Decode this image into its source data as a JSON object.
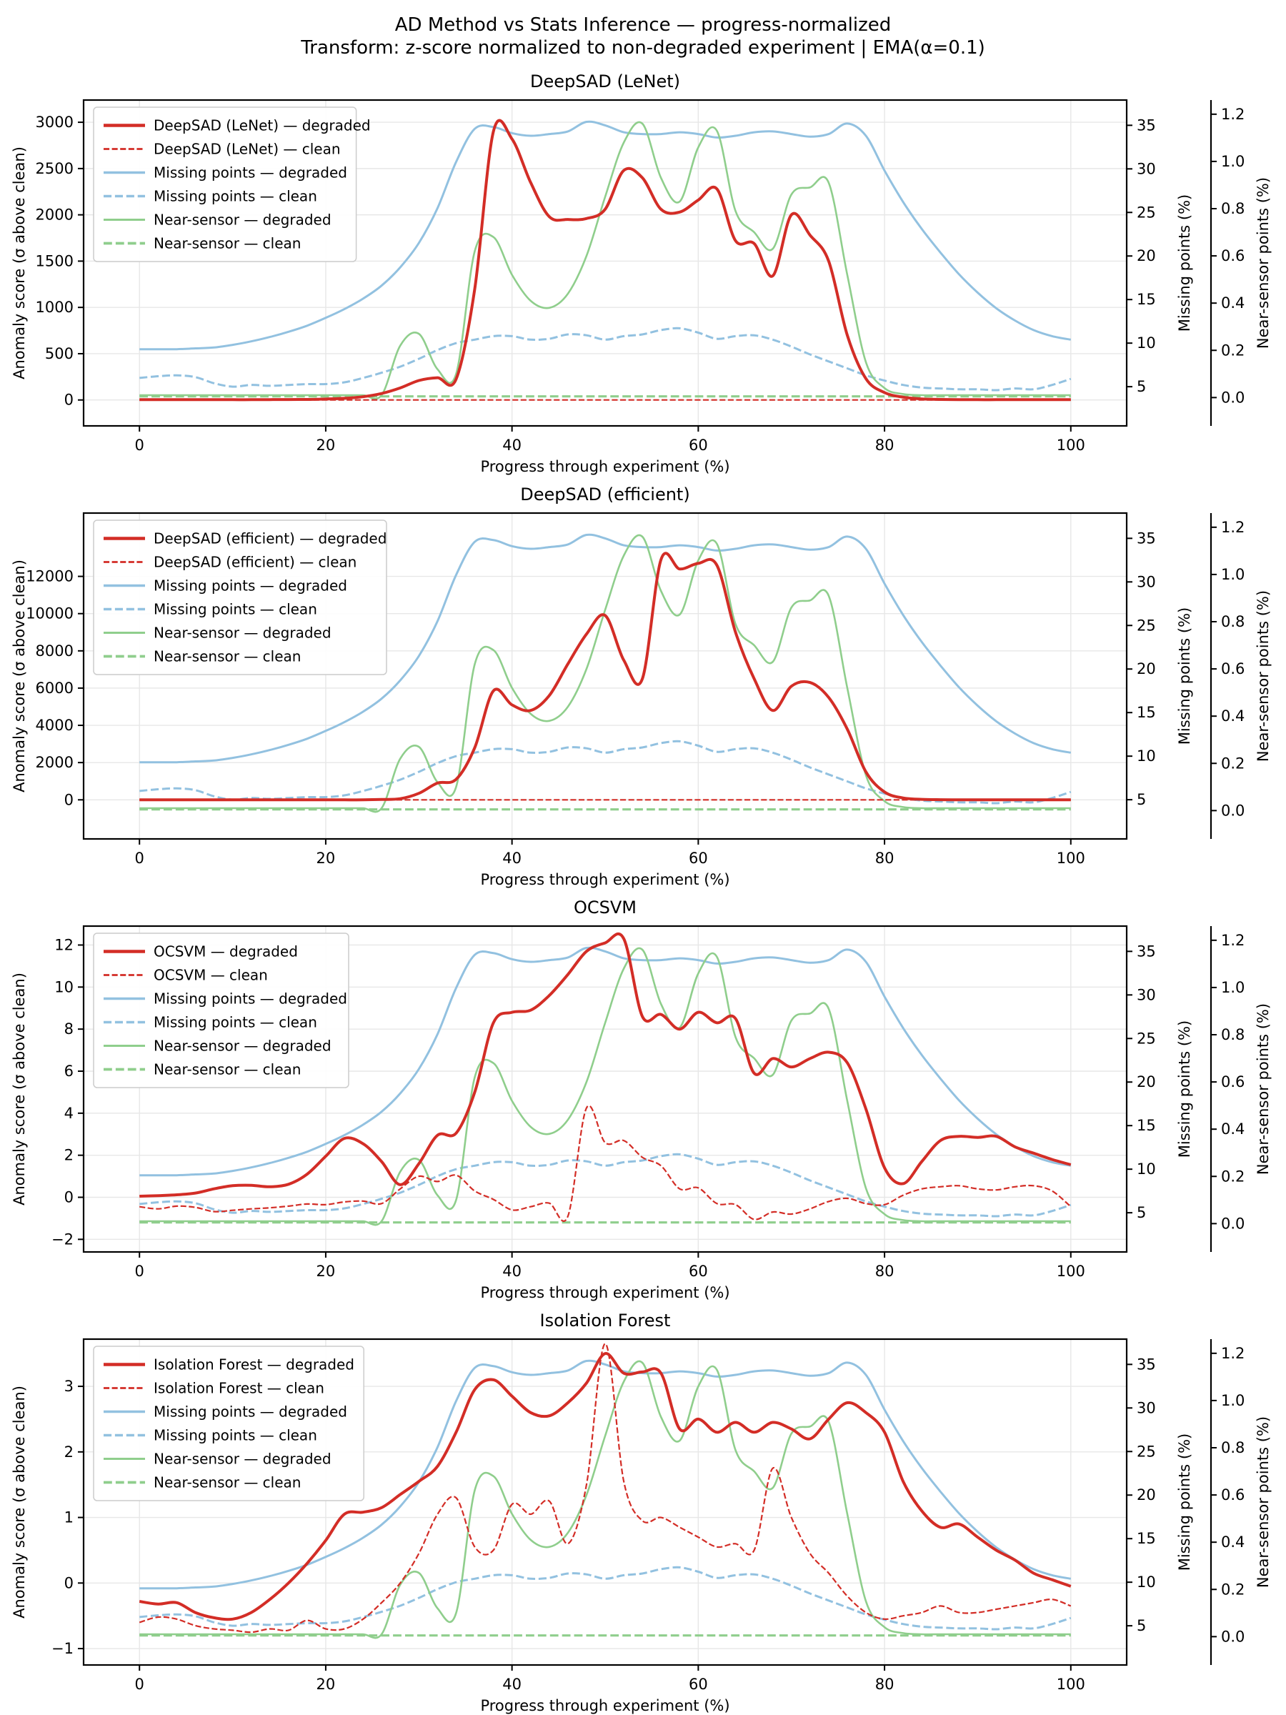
{
  "figure": {
    "title": "AD Method vs Stats Inference — progress-normalized",
    "subtitle": "Transform: z-score normalized to non-degraded experiment | EMA(α=0.1)",
    "xlabel": "Progress through experiment (%)",
    "ylabel_left": "Anomaly score (σ above clean)",
    "ylabel_right1": "Missing points (%)",
    "ylabel_right2": "Near-sensor points (%)"
  },
  "colors": {
    "ad": "#d32d26",
    "missing": "#92c1e0",
    "near": "#8fce8c",
    "grid": "#e7e7e7",
    "spine": "#000000"
  },
  "chart_data": {
    "type": "line",
    "x": [
      0,
      2,
      4,
      6,
      8,
      10,
      12,
      14,
      16,
      18,
      20,
      22,
      24,
      26,
      28,
      30,
      32,
      34,
      36,
      38,
      40,
      42,
      44,
      46,
      48,
      50,
      52,
      54,
      56,
      58,
      60,
      62,
      64,
      66,
      68,
      70,
      72,
      74,
      76,
      78,
      80,
      82,
      84,
      86,
      88,
      90,
      92,
      94,
      96,
      98,
      100
    ],
    "x_ticks": [
      0,
      20,
      40,
      60,
      80,
      100
    ],
    "x_tick_labels": [
      "0",
      "20",
      "40",
      "60",
      "80",
      "100"
    ],
    "x_lim": [
      -6,
      106
    ],
    "grid": true,
    "legend_position": "upper left",
    "right_axis_missing": {
      "label": "Missing points (%)",
      "ticks": [
        5,
        10,
        15,
        20,
        25,
        30,
        35
      ],
      "tick_labels": [
        "5",
        "10",
        "15",
        "20",
        "25",
        "30",
        "35"
      ],
      "lim": [
        0.5,
        37.9
      ]
    },
    "right_axis_near": {
      "label": "Near-sensor points (%)",
      "ticks": [
        0.0,
        0.2,
        0.4,
        0.6,
        0.8,
        1.0,
        1.2
      ],
      "tick_labels": [
        "0.0",
        "0.2",
        "0.4",
        "0.6",
        "0.8",
        "1.0",
        "1.2"
      ],
      "lim": [
        -0.12,
        1.26
      ]
    },
    "shared_series": {
      "missing_degraded": [
        9.3,
        9.3,
        9.3,
        9.4,
        9.5,
        9.8,
        10.2,
        10.7,
        11.3,
        12.0,
        12.9,
        13.9,
        15.1,
        16.6,
        18.7,
        21.5,
        25.5,
        30.8,
        34.6,
        34.8,
        34.1,
        33.8,
        34.0,
        34.3,
        35.4,
        35.0,
        34.2,
        34.0,
        34.0,
        34.2,
        34.0,
        33.6,
        33.8,
        34.2,
        34.3,
        34.0,
        33.7,
        34.0,
        35.2,
        33.8,
        29.8,
        26.2,
        23.1,
        20.4,
        17.9,
        15.8,
        14.0,
        12.6,
        11.5,
        10.8,
        10.4
      ],
      "missing_clean": [
        6.0,
        6.2,
        6.3,
        6.1,
        5.4,
        5.0,
        5.2,
        5.1,
        5.2,
        5.3,
        5.3,
        5.5,
        6.0,
        6.6,
        7.3,
        8.2,
        9.2,
        10.0,
        10.4,
        10.8,
        10.8,
        10.4,
        10.5,
        11.0,
        10.9,
        10.4,
        10.8,
        11.0,
        11.5,
        11.7,
        11.2,
        10.5,
        10.8,
        10.9,
        10.4,
        9.6,
        8.7,
        7.9,
        7.1,
        6.3,
        5.7,
        5.2,
        4.9,
        4.8,
        4.7,
        4.7,
        4.6,
        4.8,
        4.7,
        5.2,
        5.9
      ],
      "near_degraded": [
        0.01,
        0.01,
        0.01,
        0.01,
        0.01,
        0.01,
        0.01,
        0.01,
        0.01,
        0.01,
        0.01,
        0.01,
        0.01,
        0.01,
        0.22,
        0.27,
        0.12,
        0.1,
        0.62,
        0.68,
        0.52,
        0.41,
        0.38,
        0.44,
        0.6,
        0.85,
        1.08,
        1.16,
        0.93,
        0.83,
        1.06,
        1.13,
        0.79,
        0.7,
        0.63,
        0.86,
        0.89,
        0.91,
        0.52,
        0.15,
        0.04,
        0.015,
        0.01,
        0.01,
        0.01,
        0.01,
        0.01,
        0.01,
        0.01,
        0.01,
        0.01
      ],
      "near_clean": [
        0.005,
        0.005,
        0.005,
        0.005,
        0.005,
        0.005,
        0.005,
        0.005,
        0.005,
        0.005,
        0.005,
        0.005,
        0.005,
        0.005,
        0.005,
        0.005,
        0.005,
        0.005,
        0.005,
        0.005,
        0.005,
        0.005,
        0.005,
        0.005,
        0.005,
        0.005,
        0.005,
        0.005,
        0.005,
        0.005,
        0.005,
        0.005,
        0.005,
        0.005,
        0.005,
        0.005,
        0.005,
        0.005,
        0.005,
        0.005,
        0.005,
        0.005,
        0.005,
        0.005,
        0.005,
        0.005,
        0.005,
        0.005,
        0.005,
        0.005,
        0.005
      ]
    },
    "subplots": [
      {
        "title": "DeepSAD (LeNet)",
        "left_ticks": [
          0,
          500,
          1000,
          1500,
          2000,
          2500,
          3000
        ],
        "left_tick_labels": [
          "0",
          "500",
          "1000",
          "1500",
          "2000",
          "2500",
          "3000"
        ],
        "left_lim": [
          -280,
          3240
        ],
        "ad_degraded": [
          3,
          3,
          3,
          3,
          3,
          3,
          3,
          4,
          5,
          6,
          10,
          18,
          35,
          70,
          130,
          210,
          240,
          225,
          1200,
          2900,
          2820,
          2350,
          1980,
          1950,
          1960,
          2060,
          2480,
          2400,
          2060,
          2030,
          2160,
          2280,
          1720,
          1690,
          1340,
          2000,
          1780,
          1500,
          700,
          230,
          80,
          30,
          12,
          6,
          4,
          3,
          3,
          3,
          3,
          3,
          3
        ],
        "ad_clean": [
          0,
          0,
          0,
          0,
          0,
          0,
          0,
          0,
          0,
          0,
          0,
          0,
          0,
          0,
          0,
          0,
          0,
          0,
          0,
          0,
          0,
          0,
          0,
          0,
          0,
          0,
          0,
          0,
          0,
          0,
          0,
          0,
          0,
          0,
          0,
          0,
          0,
          0,
          0,
          0,
          0,
          0,
          0,
          0,
          0,
          0,
          0,
          0,
          0,
          0,
          0
        ],
        "legend": [
          "DeepSAD (LeNet) — degraded",
          "DeepSAD (LeNet) — clean",
          "Missing points — degraded",
          "Missing points — clean",
          "Near-sensor — degraded",
          "Near-sensor — clean"
        ]
      },
      {
        "title": "DeepSAD (efficient)",
        "left_ticks": [
          0,
          2000,
          4000,
          6000,
          8000,
          10000,
          12000
        ],
        "left_tick_labels": [
          "0",
          "2000",
          "4000",
          "6000",
          "8000",
          "10000",
          "12000"
        ],
        "left_lim": [
          -2100,
          15400
        ],
        "ad_degraded": [
          0,
          0,
          0,
          0,
          0,
          0,
          0,
          0,
          0,
          0,
          0,
          0,
          0,
          20,
          60,
          350,
          900,
          1100,
          2800,
          5850,
          5100,
          4800,
          5600,
          7300,
          8900,
          9900,
          7500,
          6500,
          12900,
          12400,
          12700,
          12600,
          9000,
          6500,
          4800,
          6100,
          6300,
          5500,
          3800,
          1500,
          420,
          100,
          25,
          8,
          3,
          2,
          2,
          2,
          2,
          2,
          2
        ],
        "ad_clean": [
          0,
          0,
          0,
          0,
          0,
          0,
          0,
          0,
          0,
          0,
          0,
          0,
          0,
          0,
          0,
          0,
          0,
          0,
          0,
          0,
          0,
          0,
          0,
          0,
          0,
          0,
          0,
          0,
          0,
          0,
          0,
          0,
          0,
          0,
          0,
          0,
          0,
          0,
          0,
          0,
          0,
          0,
          0,
          0,
          0,
          0,
          0,
          0,
          0,
          0,
          0
        ],
        "legend": [
          "DeepSAD (efficient) — degraded",
          "DeepSAD (efficient) — clean",
          "Missing points — degraded",
          "Missing points — clean",
          "Near-sensor — degraded",
          "Near-sensor — clean"
        ]
      },
      {
        "title": "OCSVM",
        "left_ticks": [
          -2,
          0,
          2,
          4,
          6,
          8,
          10,
          12
        ],
        "left_tick_labels": [
          "−2",
          "0",
          "2",
          "4",
          "6",
          "8",
          "10",
          "12"
        ],
        "left_lim": [
          -2.6,
          12.9
        ],
        "ad_degraded": [
          0.05,
          0.08,
          0.12,
          0.2,
          0.4,
          0.55,
          0.57,
          0.5,
          0.62,
          1.1,
          1.95,
          2.8,
          2.55,
          1.7,
          0.6,
          1.6,
          2.95,
          3.05,
          5.0,
          8.3,
          8.8,
          8.9,
          9.6,
          10.6,
          11.7,
          12.1,
          12.3,
          8.6,
          8.7,
          8.0,
          8.8,
          8.3,
          8.5,
          5.9,
          6.6,
          6.2,
          6.6,
          6.9,
          6.4,
          4.2,
          1.4,
          0.65,
          1.7,
          2.7,
          2.9,
          2.85,
          2.9,
          2.4,
          2.1,
          1.8,
          1.55
        ],
        "ad_clean": [
          -0.45,
          -0.55,
          -0.42,
          -0.48,
          -0.68,
          -0.62,
          -0.55,
          -0.5,
          -0.42,
          -0.32,
          -0.35,
          -0.22,
          -0.18,
          -0.3,
          0.4,
          1.0,
          0.75,
          1.05,
          0.3,
          -0.1,
          -0.6,
          -0.45,
          -0.28,
          -0.9,
          4.25,
          2.6,
          2.7,
          1.9,
          1.5,
          0.4,
          0.45,
          -0.3,
          -0.35,
          -1.05,
          -0.7,
          -0.8,
          -0.55,
          -0.2,
          -0.05,
          -0.3,
          -0.35,
          0.1,
          0.4,
          0.5,
          0.55,
          0.4,
          0.35,
          0.5,
          0.55,
          0.3,
          -0.45
        ],
        "legend": [
          "OCSVM — degraded",
          "OCSVM — clean",
          "Missing points — degraded",
          "Missing points — clean",
          "Near-sensor — degraded",
          "Near-sensor — clean"
        ]
      },
      {
        "title": "Isolation Forest",
        "left_ticks": [
          -1,
          0,
          1,
          2,
          3
        ],
        "left_tick_labels": [
          "−1",
          "0",
          "1",
          "2",
          "3"
        ],
        "left_lim": [
          -1.25,
          3.72
        ],
        "ad_degraded": [
          -0.28,
          -0.32,
          -0.3,
          -0.45,
          -0.53,
          -0.55,
          -0.45,
          -0.25,
          0.0,
          0.3,
          0.65,
          1.05,
          1.08,
          1.15,
          1.35,
          1.55,
          1.78,
          2.3,
          2.95,
          3.1,
          2.85,
          2.6,
          2.55,
          2.75,
          3.05,
          3.5,
          3.2,
          3.22,
          3.2,
          2.35,
          2.5,
          2.3,
          2.45,
          2.3,
          2.45,
          2.35,
          2.2,
          2.5,
          2.75,
          2.6,
          2.3,
          1.55,
          1.1,
          0.85,
          0.9,
          0.7,
          0.5,
          0.35,
          0.15,
          0.05,
          -0.05
        ],
        "ad_clean": [
          -0.6,
          -0.52,
          -0.55,
          -0.65,
          -0.7,
          -0.72,
          -0.75,
          -0.7,
          -0.72,
          -0.57,
          -0.7,
          -0.7,
          -0.55,
          -0.3,
          0.0,
          0.45,
          1.05,
          1.3,
          0.55,
          0.5,
          1.2,
          1.05,
          1.25,
          0.6,
          1.5,
          3.65,
          1.55,
          0.95,
          1.0,
          0.85,
          0.7,
          0.55,
          0.6,
          0.5,
          1.75,
          1.0,
          0.45,
          0.15,
          -0.2,
          -0.45,
          -0.55,
          -0.5,
          -0.45,
          -0.35,
          -0.45,
          -0.45,
          -0.4,
          -0.35,
          -0.3,
          -0.25,
          -0.35
        ],
        "legend": [
          "Isolation Forest — degraded",
          "Isolation Forest — clean",
          "Missing points — degraded",
          "Missing points — clean",
          "Near-sensor — degraded",
          "Near-sensor — clean"
        ]
      }
    ]
  }
}
